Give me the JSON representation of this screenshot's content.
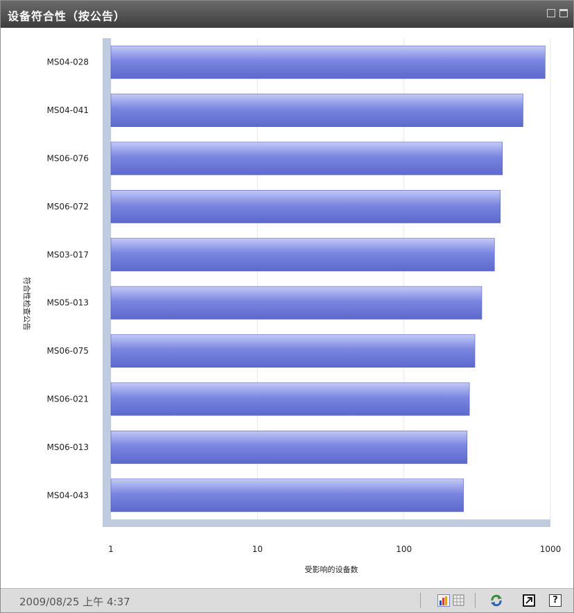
{
  "window": {
    "title": "设备符合性（按公告）",
    "minimize_icon": "minimize-icon",
    "maximize_icon": "maximize-icon"
  },
  "footer": {
    "timestamp": "2009/08/25 上午 4:37",
    "icons": [
      "bar-chart-view-icon",
      "table-view-icon",
      "refresh-icon",
      "open-external-icon",
      "help-icon"
    ],
    "help_label": "?"
  },
  "colors": {
    "bar_fill": "#7a86e0",
    "bar_highlight": "#c3c9f7",
    "axis_wall": "#bfcce0",
    "title_bar": "#4f4f4f",
    "footer_bg": "#dcdcdc"
  },
  "chart_data": {
    "type": "bar",
    "orientation": "horizontal",
    "categories": [
      "MS04-028",
      "MS04-041",
      "MS06-076",
      "MS06-072",
      "MS03-017",
      "MS05-013",
      "MS06-075",
      "MS06-021",
      "MS06-013",
      "MS04-043"
    ],
    "values": [
      920,
      650,
      470,
      455,
      415,
      340,
      305,
      280,
      270,
      255
    ],
    "xlabel": "受影响的设备数",
    "ylabel": "符合性检查公告",
    "xscale": "log",
    "xlim": [
      1,
      1000
    ],
    "xticks": [
      "1",
      "10",
      "100",
      "1000"
    ],
    "grid": true
  }
}
